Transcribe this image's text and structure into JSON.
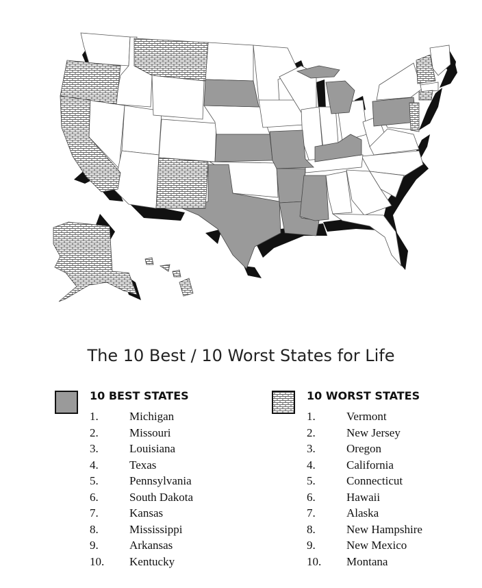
{
  "title": "The 10 Best / 10 Worst States for Life",
  "best": {
    "heading": "10 BEST STATES",
    "legend_color": "#9a9a9a",
    "items": [
      {
        "rank": "1.",
        "name": "Michigan"
      },
      {
        "rank": "2.",
        "name": "Missouri"
      },
      {
        "rank": "3.",
        "name": "Louisiana"
      },
      {
        "rank": "4.",
        "name": "Texas"
      },
      {
        "rank": "5.",
        "name": "Pennsylvania"
      },
      {
        "rank": "6.",
        "name": "South Dakota"
      },
      {
        "rank": "7.",
        "name": "Kansas"
      },
      {
        "rank": "8.",
        "name": "Mississippi"
      },
      {
        "rank": "9.",
        "name": "Arkansas"
      },
      {
        "rank": "10.",
        "name": "Kentucky"
      }
    ]
  },
  "worst": {
    "heading": "10 WORST STATES",
    "legend_pattern": "brick",
    "items": [
      {
        "rank": "1.",
        "name": "Vermont"
      },
      {
        "rank": "2.",
        "name": "New Jersey"
      },
      {
        "rank": "3.",
        "name": "Oregon"
      },
      {
        "rank": "4.",
        "name": "California"
      },
      {
        "rank": "5.",
        "name": "Connecticut"
      },
      {
        "rank": "6.",
        "name": "Hawaii"
      },
      {
        "rank": "7.",
        "name": "Alaska"
      },
      {
        "rank": "8.",
        "name": "New Hampshire"
      },
      {
        "rank": "9.",
        "name": "New Mexico"
      },
      {
        "rank": "10.",
        "name": "Montana"
      }
    ]
  }
}
